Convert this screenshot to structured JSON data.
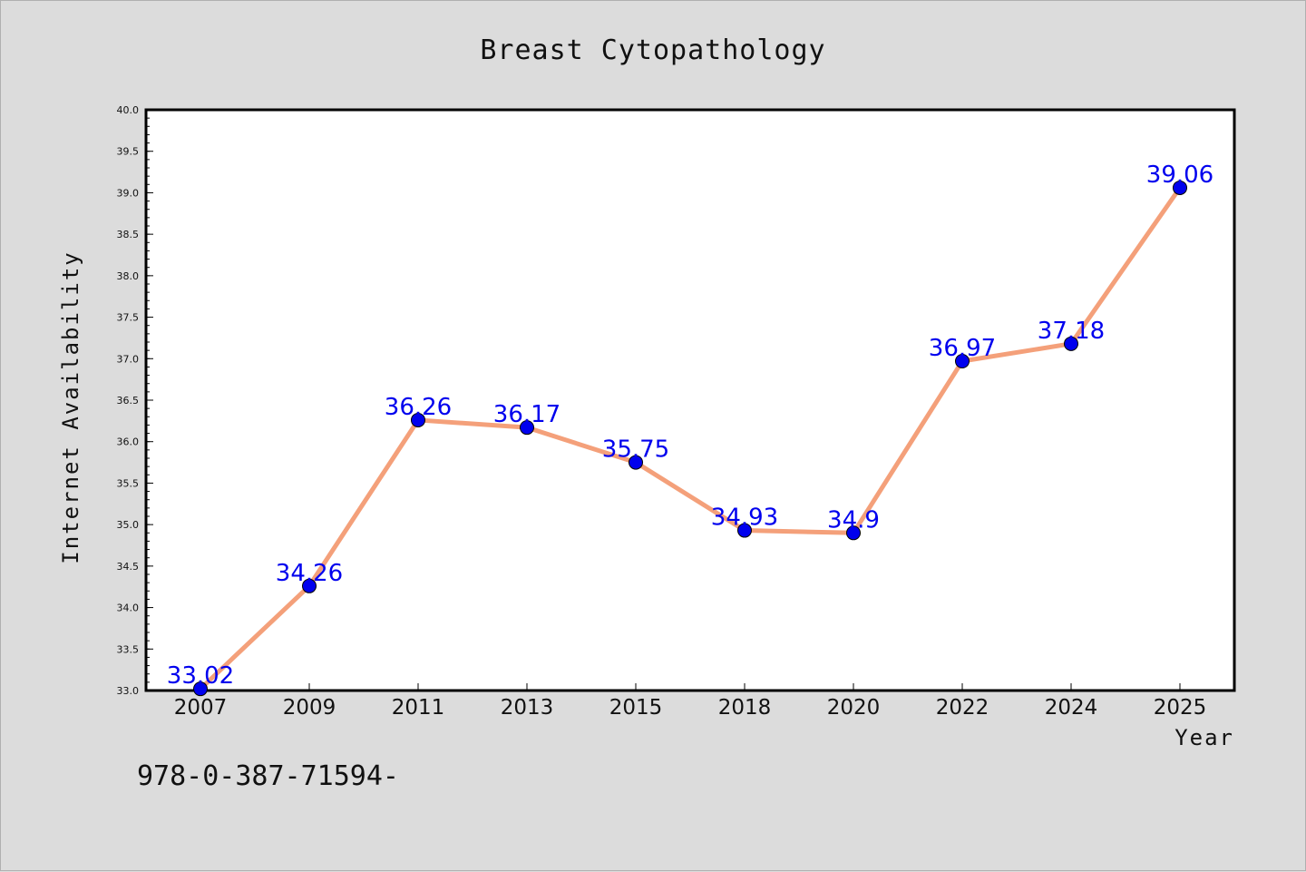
{
  "chart_data": {
    "type": "line",
    "title": "Breast Cytopathology",
    "xlabel": "Year",
    "ylabel": "Internet Availability",
    "categories": [
      "2007",
      "2009",
      "2011",
      "2013",
      "2015",
      "2018",
      "2020",
      "2022",
      "2024",
      "2025"
    ],
    "series": [
      {
        "values": [
          33.02,
          34.26,
          36.26,
          36.17,
          35.75,
          34.93,
          34.9,
          36.97,
          37.18,
          39.06
        ],
        "line_color": "#f4a07a",
        "marker_color": "#0000ee"
      }
    ],
    "ylim": [
      33.0,
      40.0
    ],
    "yticks": [
      "33.0",
      "33.5",
      "34.0",
      "34.5",
      "35.0",
      "35.5",
      "36.0",
      "36.5",
      "37.0",
      "37.5",
      "38.0",
      "38.5",
      "39.0",
      "39.5",
      "40.0"
    ],
    "data_labels": [
      "33.02",
      "34.26",
      "36.26",
      "36.17",
      "35.75",
      "34.93",
      "34.9",
      "36.97",
      "37.18",
      "39.06"
    ],
    "data_label_color": "#0000ee",
    "grid": false,
    "legend": "none"
  },
  "footer": {
    "text": "978-0-387-71594-"
  }
}
